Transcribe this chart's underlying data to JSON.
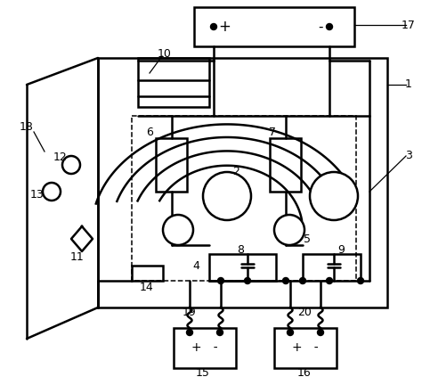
{
  "bg_color": "#ffffff",
  "line_color": "#000000",
  "figsize": [
    4.74,
    4.23
  ],
  "dpi": 100
}
